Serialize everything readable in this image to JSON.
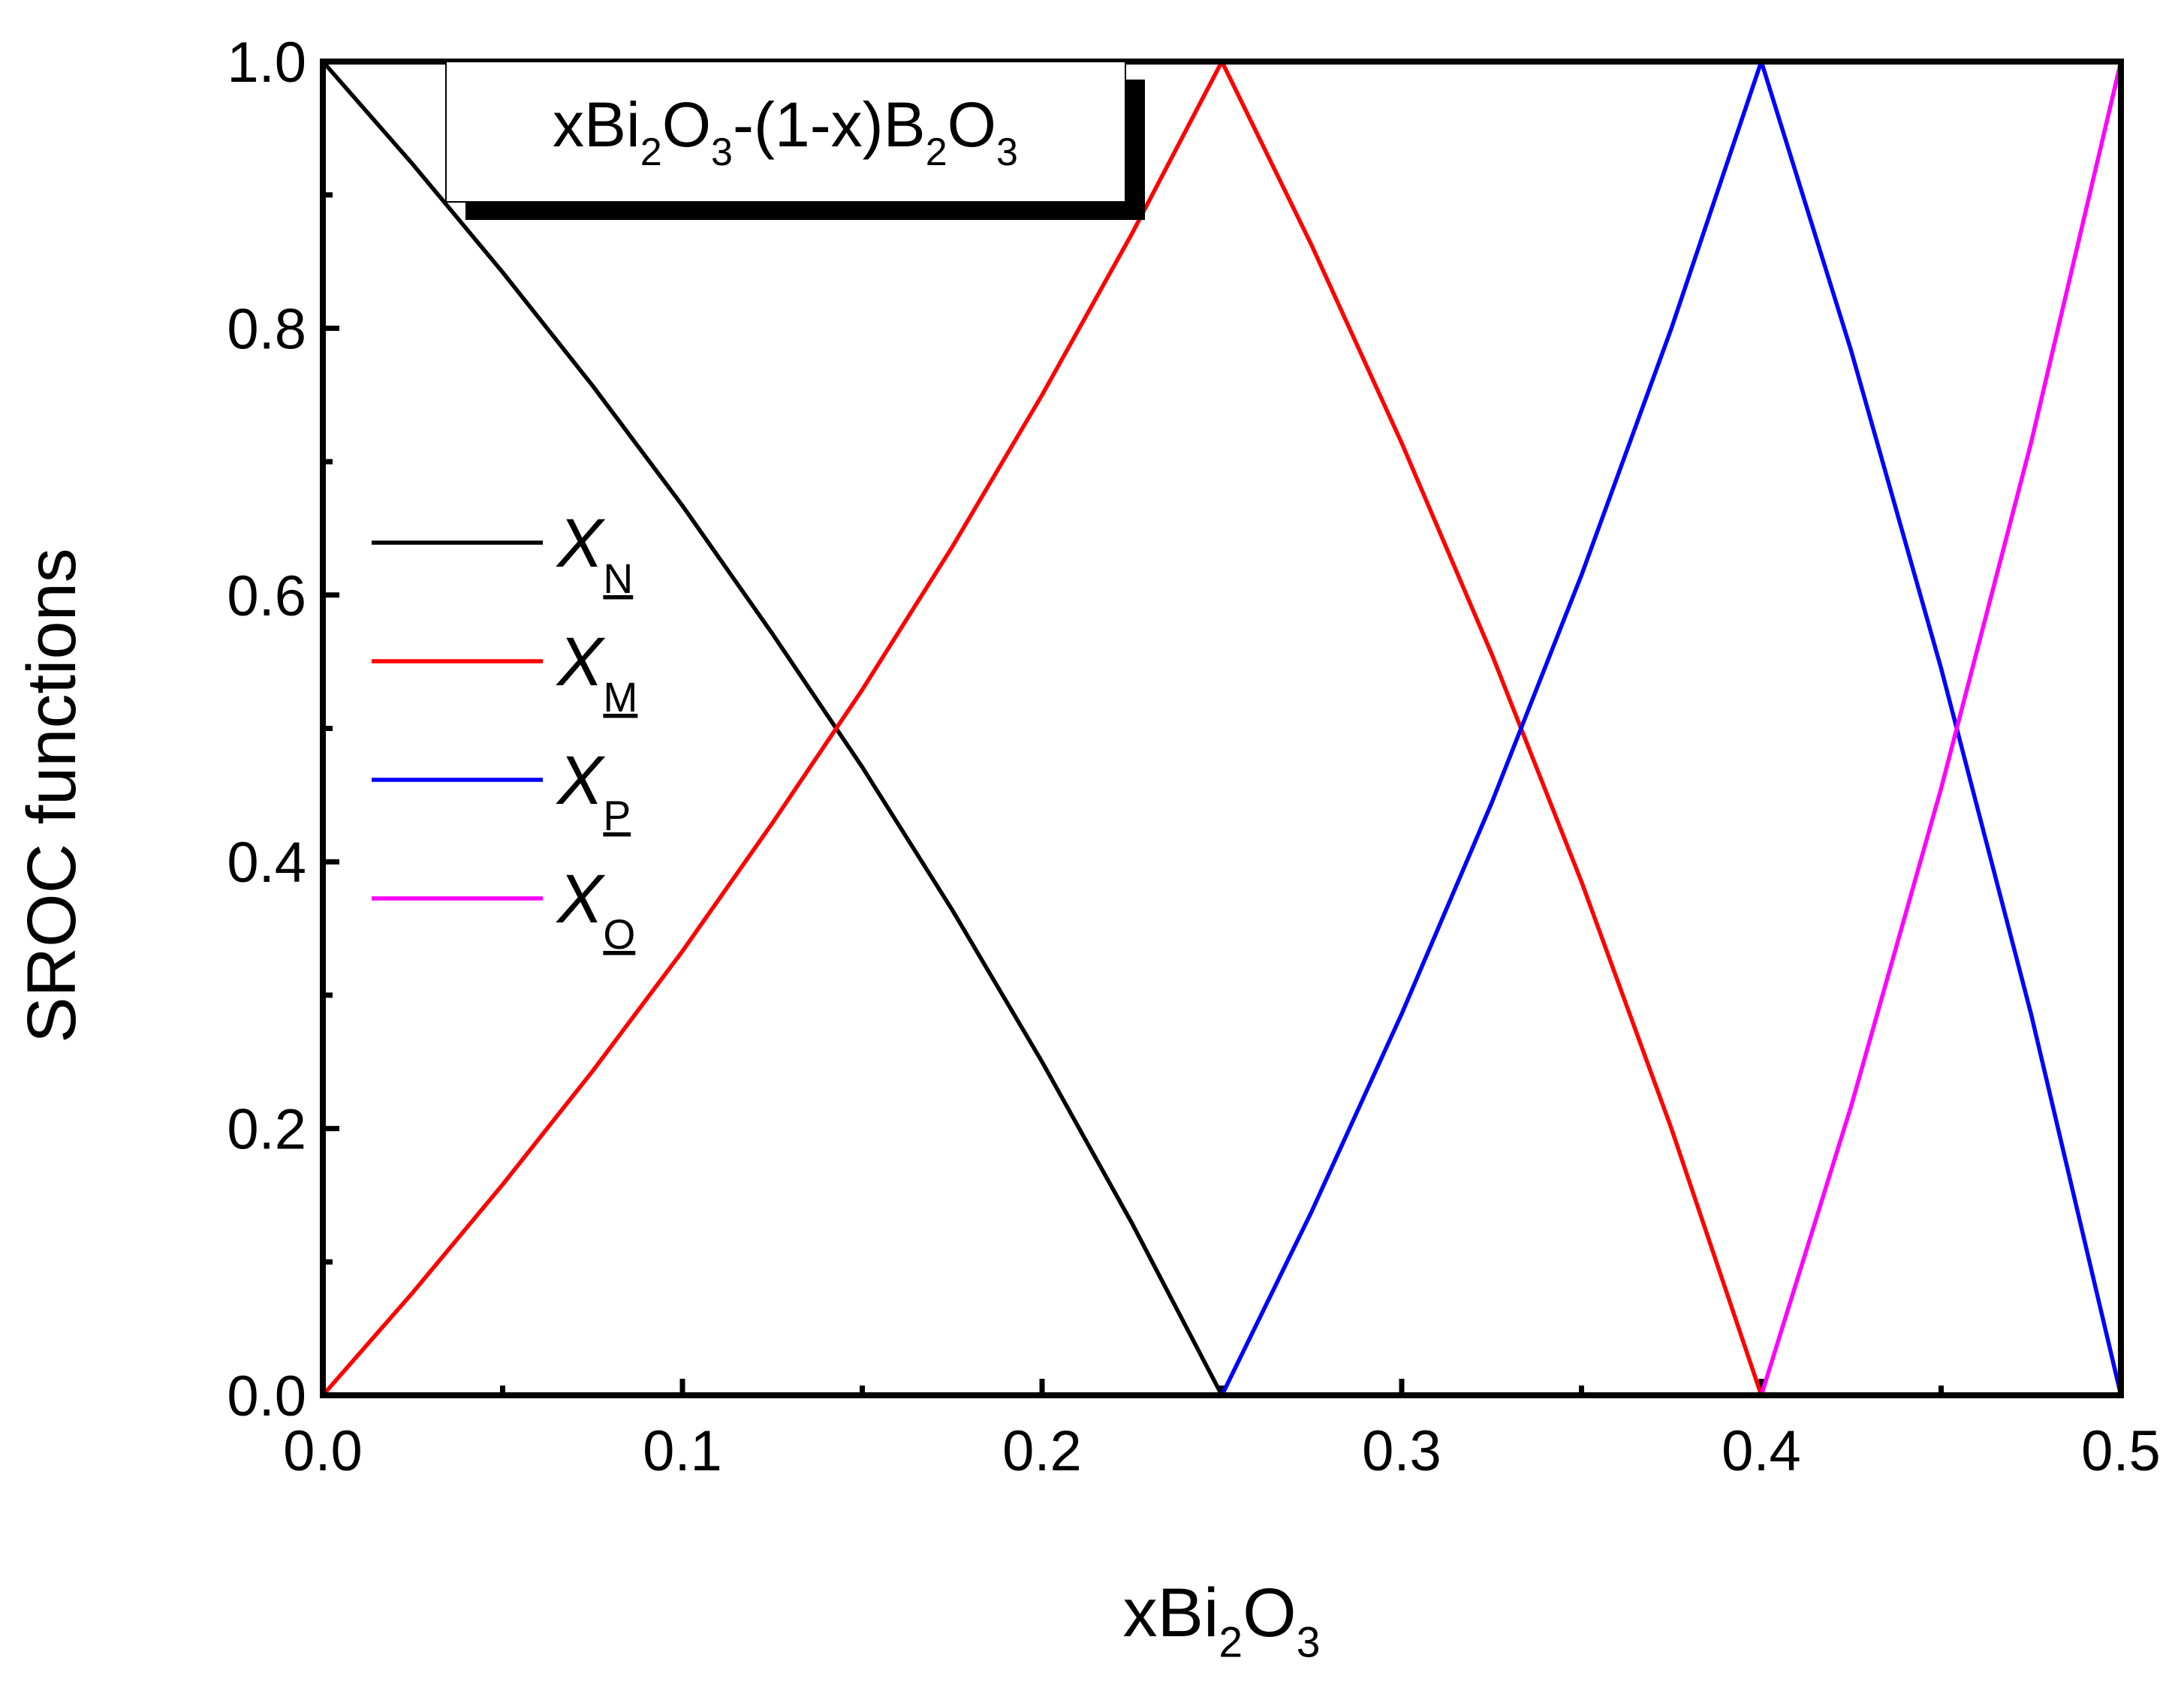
{
  "chart_data": {
    "type": "line",
    "title": "xBi2O3-(1-x)B2O3",
    "x_label": "xBi2O3",
    "y_label": "SROC functions",
    "x": [
      0,
      0.025,
      0.05,
      0.075,
      0.1,
      0.125,
      0.15,
      0.175,
      0.2,
      0.225,
      0.25,
      0.275,
      0.3,
      0.325,
      0.35,
      0.375,
      0.4,
      0.425,
      0.45,
      0.475,
      0.5
    ],
    "series": [
      {
        "name": "XN",
        "color": "#000000",
        "values": [
          1,
          0.923,
          0.842,
          0.757,
          0.667,
          0.571,
          0.471,
          0.364,
          0.25,
          0.129,
          0,
          null,
          null,
          null,
          null,
          null,
          null,
          null,
          null,
          null,
          null
        ]
      },
      {
        "name": "XM",
        "color": "#ff0000",
        "values": [
          0,
          0.077,
          0.158,
          0.243,
          0.333,
          0.429,
          0.529,
          0.636,
          0.75,
          0.871,
          1,
          0.862,
          0.714,
          0.556,
          0.385,
          0.2,
          0,
          null,
          null,
          null,
          null
        ]
      },
      {
        "name": "XP",
        "color": "#0000ff",
        "values": [
          null,
          null,
          null,
          null,
          null,
          null,
          null,
          null,
          null,
          null,
          0,
          0.138,
          0.286,
          0.444,
          0.615,
          0.8,
          1,
          0.783,
          0.545,
          0.286,
          0
        ]
      },
      {
        "name": "XO",
        "color": "#ff00ff",
        "values": [
          null,
          null,
          null,
          null,
          null,
          null,
          null,
          null,
          null,
          null,
          null,
          null,
          null,
          null,
          null,
          null,
          0,
          0.217,
          0.455,
          0.714,
          1
        ]
      }
    ],
    "xlim": [
      0,
      0.5
    ],
    "ylim": [
      0,
      1
    ],
    "xticks": [
      {
        "value": 0,
        "label": "0.0"
      },
      0.1,
      0.2,
      0.3,
      0.4,
      0.5
    ],
    "yticks": [
      {
        "value": 0,
        "label": "0.0"
      },
      0.2,
      0.4,
      0.6,
      0.8,
      {
        "value": 1,
        "label": "1.0"
      }
    ],
    "grid": false,
    "legend": "left"
  }
}
